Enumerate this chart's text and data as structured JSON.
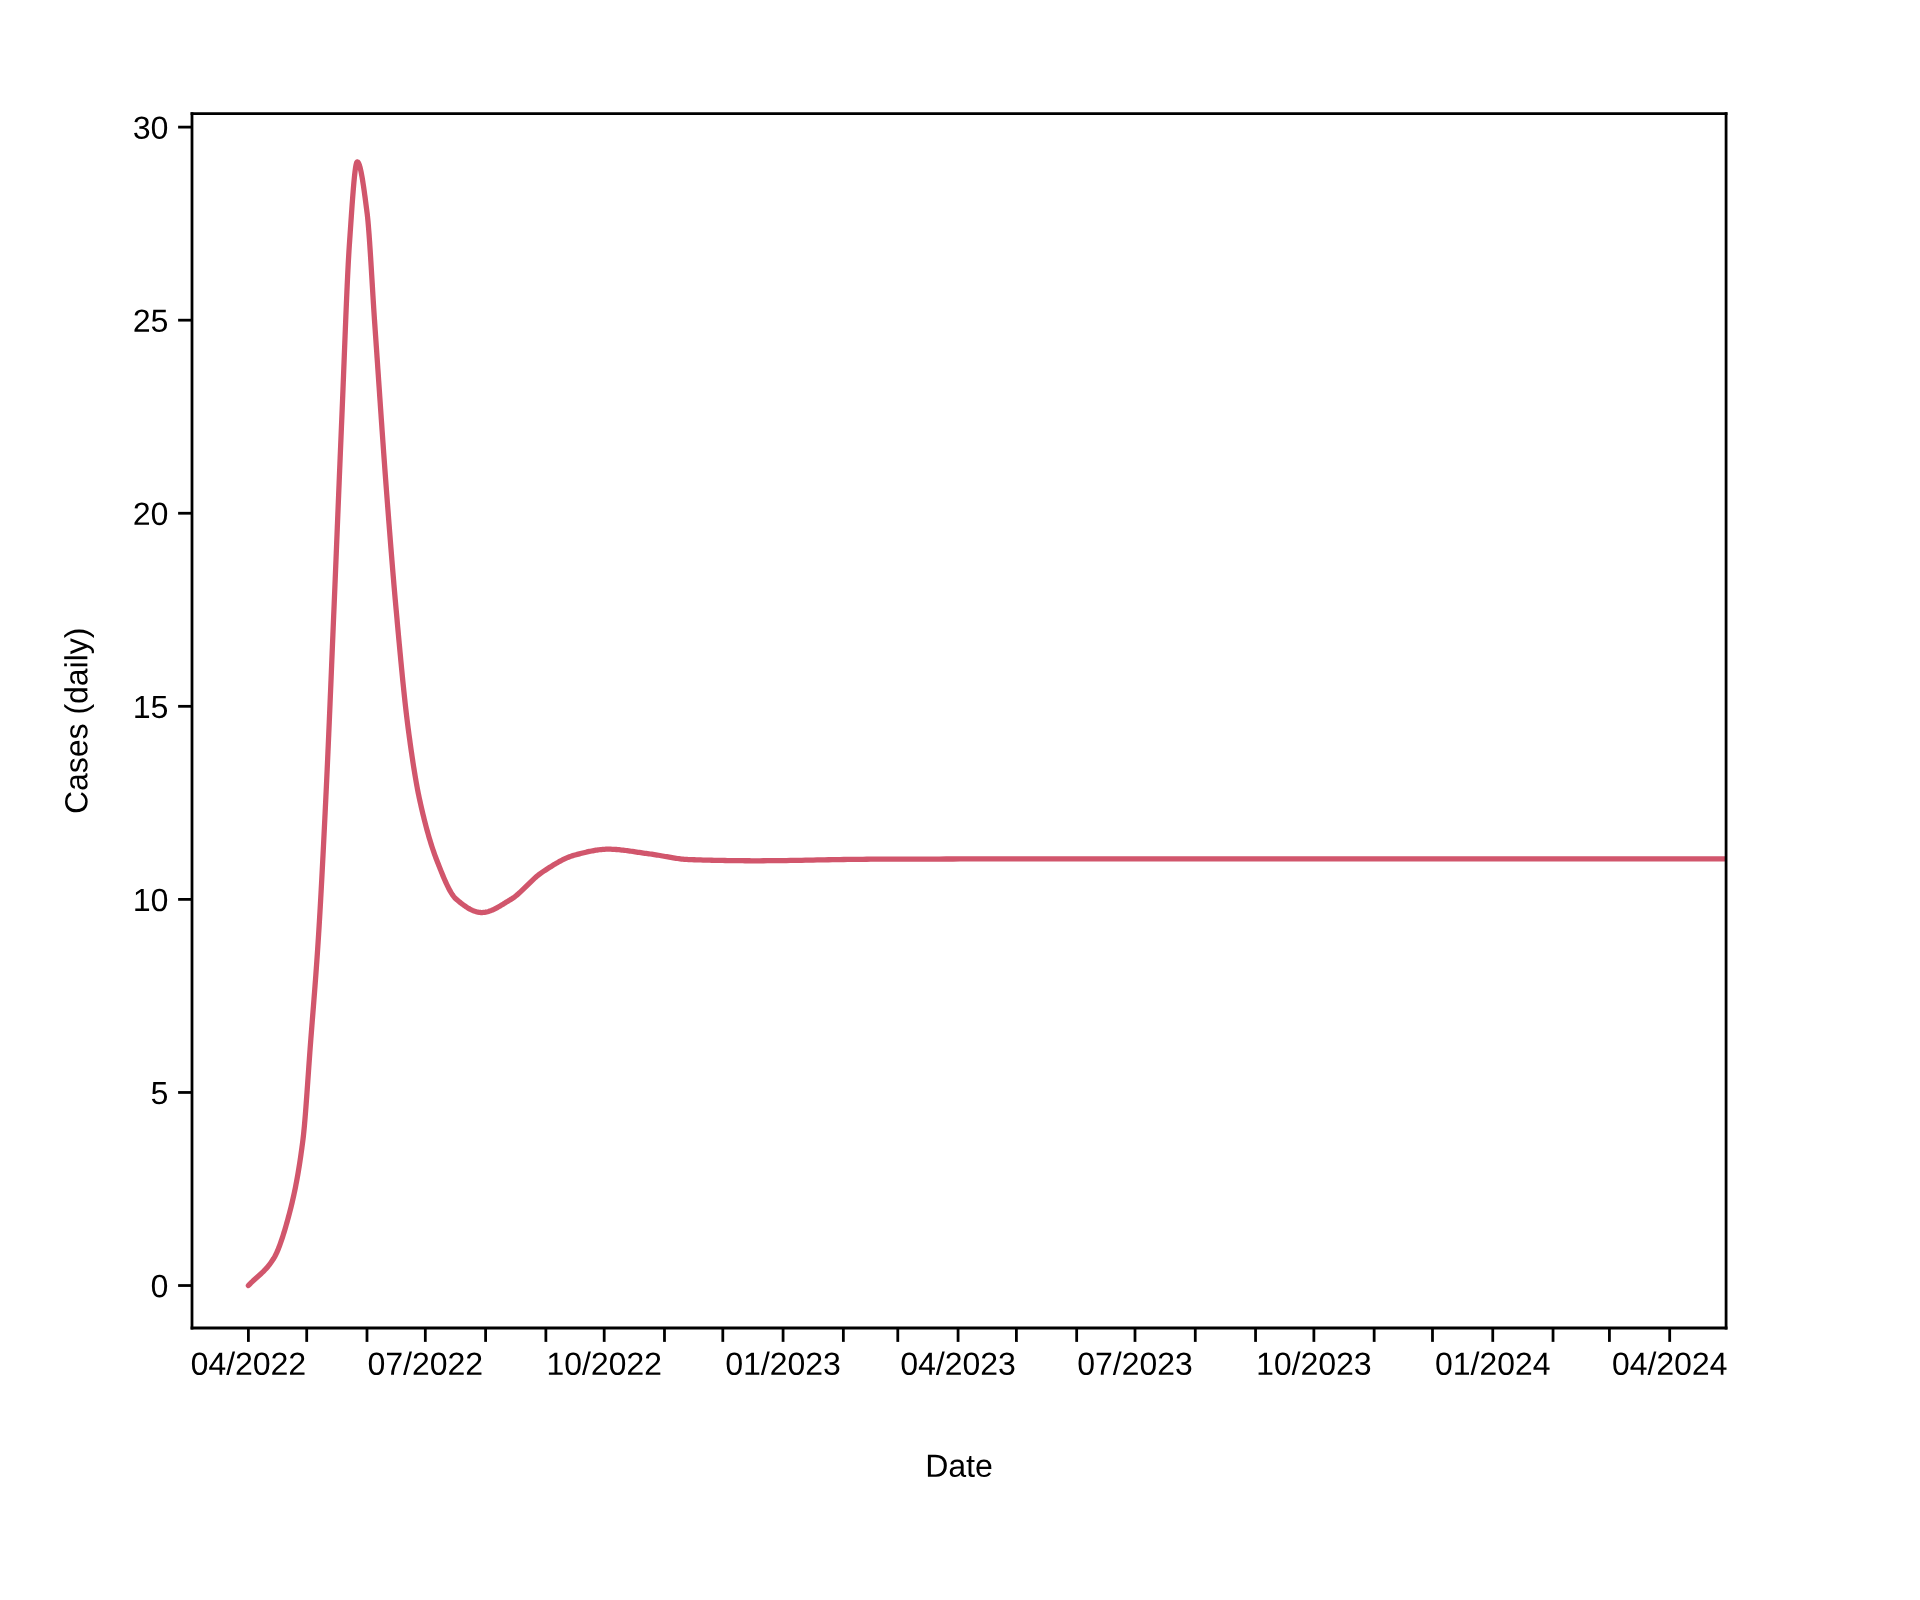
{
  "chart_data": {
    "type": "line",
    "xlabel": "Date",
    "ylabel": "Cases (daily)",
    "x": [
      "2022-04-01",
      "2022-04-14",
      "2022-04-22",
      "2022-04-29",
      "2022-05-03",
      "2022-05-07",
      "2022-05-11",
      "2022-05-15",
      "2022-05-19",
      "2022-05-23",
      "2022-05-27",
      "2022-06-01",
      "2022-06-05",
      "2022-06-11",
      "2022-06-16",
      "2022-06-22",
      "2022-06-28",
      "2022-07-07",
      "2022-07-17",
      "2022-07-30",
      "2022-08-14",
      "2022-08-30",
      "2022-09-16",
      "2022-10-03",
      "2022-10-24",
      "2022-11-14",
      "2022-12-18",
      "2023-02-15",
      "2023-06-01",
      "2024-04-30"
    ],
    "series": [
      {
        "color": "#d1566c",
        "values": [
          0,
          0.7,
          1.85,
          3.75,
          6.3,
          9.0,
          12.8,
          17.5,
          22.4,
          27.0,
          29.1,
          27.8,
          24.9,
          20.6,
          17.5,
          14.5,
          12.6,
          11.0,
          10.0,
          9.66,
          10.0,
          10.7,
          11.15,
          11.3,
          11.18,
          11.03,
          11.0,
          11.04,
          11.05,
          11.05
        ]
      }
    ],
    "xlim": [
      "2022-03-03",
      "2024-04-30"
    ],
    "xticks": [
      {
        "value": "2022-04",
        "label": "04/2022"
      },
      {
        "value": "2022-05",
        "label": null
      },
      {
        "value": "2022-06",
        "label": null
      },
      {
        "value": "2022-07",
        "label": "07/2022"
      },
      {
        "value": "2022-08",
        "label": null
      },
      {
        "value": "2022-09",
        "label": null
      },
      {
        "value": "2022-10",
        "label": "10/2022"
      },
      {
        "value": "2022-11",
        "label": null
      },
      {
        "value": "2022-12",
        "label": null
      },
      {
        "value": "2023-01",
        "label": "01/2023"
      },
      {
        "value": "2023-02",
        "label": null
      },
      {
        "value": "2023-03",
        "label": null
      },
      {
        "value": "2023-04",
        "label": "04/2023"
      },
      {
        "value": "2023-05",
        "label": null
      },
      {
        "value": "2023-06",
        "label": null
      },
      {
        "value": "2023-07",
        "label": "07/2023"
      },
      {
        "value": "2023-08",
        "label": null
      },
      {
        "value": "2023-09",
        "label": null
      },
      {
        "value": "2023-10",
        "label": "10/2023"
      },
      {
        "value": "2023-11",
        "label": null
      },
      {
        "value": "2023-12",
        "label": null
      },
      {
        "value": "2024-01",
        "label": "01/2024"
      },
      {
        "value": "2024-02",
        "label": null
      },
      {
        "value": "2024-03",
        "label": null
      },
      {
        "value": "2024-04",
        "label": "04/2024"
      }
    ],
    "ylim": [
      -1.1,
      30.35
    ],
    "yticks": [
      0,
      5,
      10,
      15,
      20,
      25,
      30
    ],
    "line_style": "solid"
  }
}
